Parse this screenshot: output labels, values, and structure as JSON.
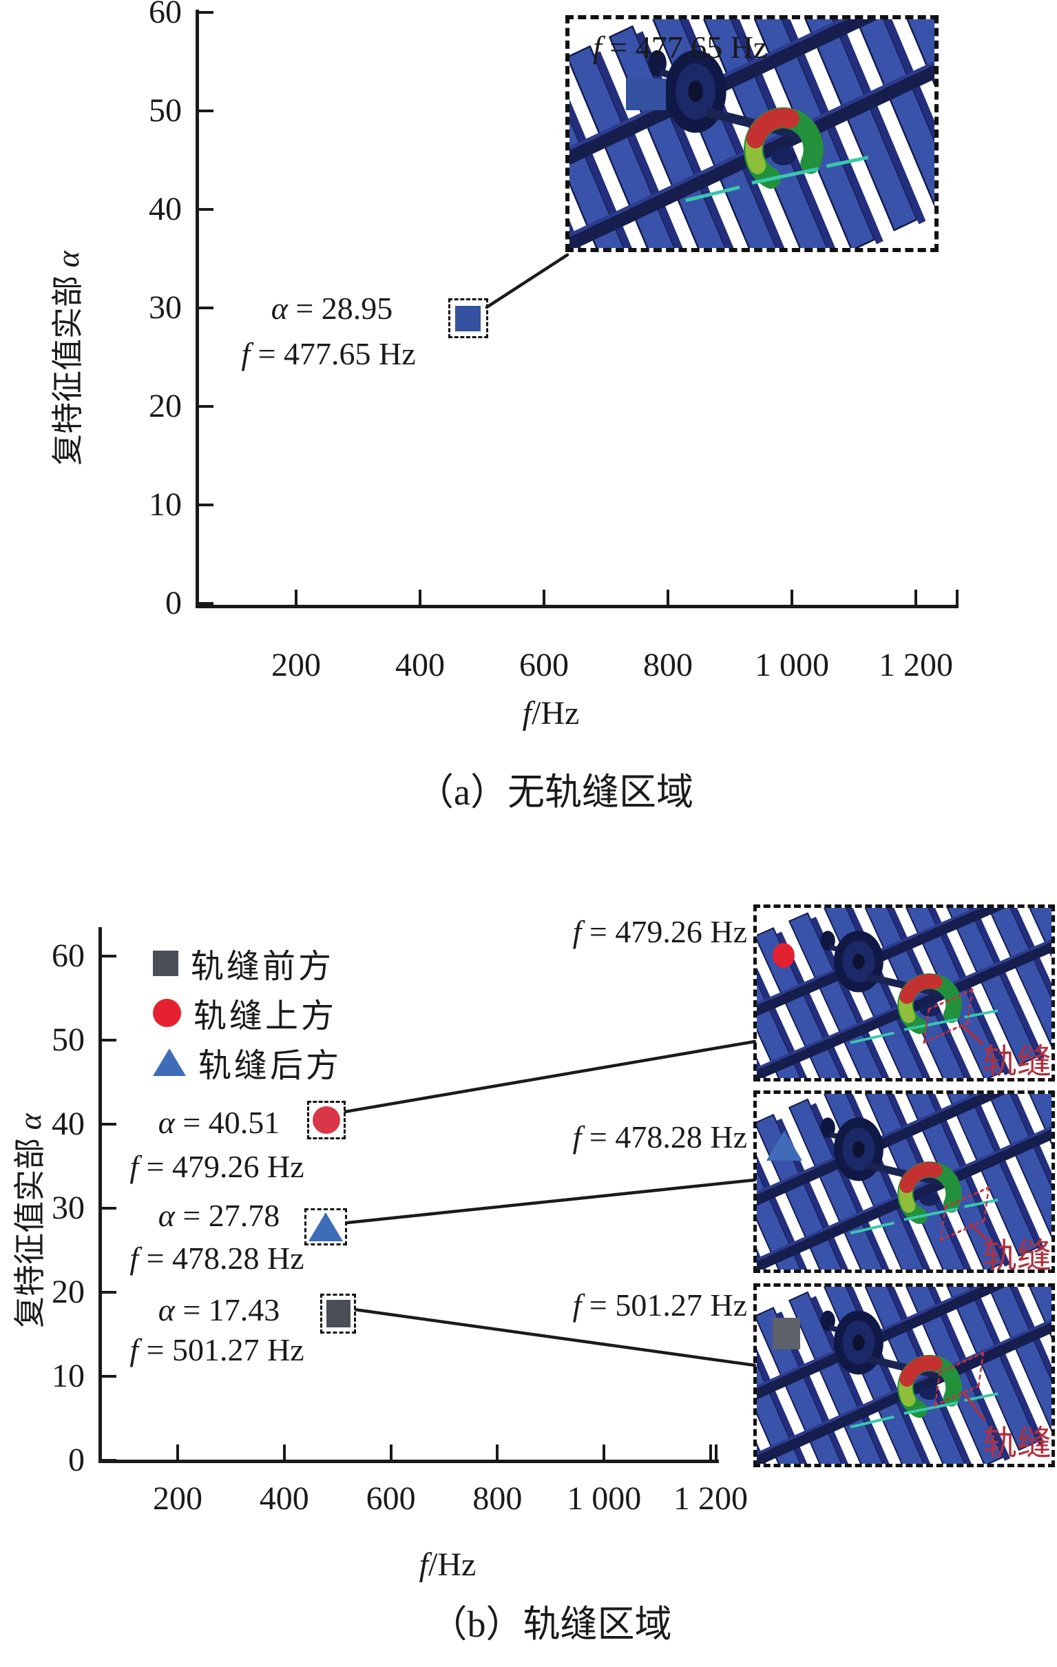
{
  "colors": {
    "axis": "#1a1a1a",
    "text": "#1a1a1a",
    "marker_blue_square": "#33519f",
    "marker_red_circle": "#d83747",
    "marker_blue_triangle": "#3e6cb8",
    "marker_gray_square": "#4a4e57",
    "legend_red": "#e6212f",
    "inset_red": "#e32030",
    "inset_gray": "#5d6169",
    "inset_tag_red": "#b2303d",
    "sleeper_blue": "#3952aa",
    "rail_navy": "#161e4e",
    "mode_green": "#23913c",
    "mode_red": "#c43131"
  },
  "panel_a": {
    "caption": "（a）无轨缝区域",
    "xlabel": {
      "sym": "f",
      "rest": "/Hz"
    },
    "ylabel": {
      "text": "复特征值实部 ",
      "sym": "α"
    },
    "xtick_labels": [
      "200",
      "400",
      "600",
      "800",
      "1 000",
      "1 200"
    ],
    "ytick_labels": [
      "0",
      "10",
      "20",
      "30",
      "40",
      "50",
      "60"
    ],
    "annotation": {
      "alpha_sym": "α",
      "alpha_rest": " = 28.95",
      "freq_sym": "f",
      "freq_rest": " = 477.65 Hz"
    },
    "inset": {
      "label_sym": "f",
      "label_rest": " = 477.65 Hz"
    }
  },
  "panel_b": {
    "caption": "（b）轨缝区域",
    "xlabel": {
      "sym": "f",
      "rest": "/Hz"
    },
    "ylabel": {
      "text": "复特征值实部 ",
      "sym": "α"
    },
    "xtick_labels": [
      "200",
      "400",
      "600",
      "800",
      "1 000",
      "1 200"
    ],
    "ytick_labels": [
      "0",
      "10",
      "20",
      "30",
      "40",
      "50",
      "60"
    ],
    "legend": [
      {
        "label": "轨缝前方",
        "marker": "square",
        "color": "#4a4e57"
      },
      {
        "label": "轨缝上方",
        "marker": "circle",
        "color": "#e6212f"
      },
      {
        "label": "轨缝后方",
        "marker": "triangle",
        "color": "#3e6cb8"
      }
    ],
    "annotations": [
      {
        "alpha_sym": "α",
        "alpha_rest": " = 40.51",
        "freq_sym": "f",
        "freq_rest": " = 479.26 Hz"
      },
      {
        "alpha_sym": "α",
        "alpha_rest": " = 27.78",
        "freq_sym": "f",
        "freq_rest": " = 478.28 Hz"
      },
      {
        "alpha_sym": "α",
        "alpha_rest": " = 17.43",
        "freq_sym": "f",
        "freq_rest": " = 501.27 Hz"
      }
    ],
    "insets": [
      {
        "label_sym": "f",
        "label_rest": " = 479.26 Hz",
        "tag": "轨缝"
      },
      {
        "label_sym": "f",
        "label_rest": " = 478.28 Hz",
        "tag": "轨缝"
      },
      {
        "label_sym": "f",
        "label_rest": " = 501.27 Hz",
        "tag": "轨缝"
      }
    ]
  },
  "chart_data": [
    {
      "type": "scatter",
      "title": "（a）无轨缝区域",
      "xlabel": "f/Hz",
      "ylabel": "复特征值实部 α",
      "xlim": [
        40,
        1290
      ],
      "ylim": [
        0,
        60
      ],
      "xticks": [
        200,
        400,
        600,
        800,
        1000,
        1200
      ],
      "yticks": [
        0,
        10,
        20,
        30,
        40,
        50,
        60
      ],
      "grid": false,
      "legend_position": "none",
      "series": [
        {
          "name": "无轨缝区域",
          "marker": "square",
          "color": "#33519f",
          "points": [
            {
              "f": 477.65,
              "alpha": 28.95
            }
          ]
        }
      ],
      "annotations": [
        "α = 28.95",
        "f = 477.65 Hz"
      ],
      "inset_labels": [
        "f = 477.65 Hz"
      ]
    },
    {
      "type": "scatter",
      "title": "（b）轨缝区域",
      "xlabel": "f/Hz",
      "ylabel": "复特征值实部 α",
      "xlim": [
        55,
        1210
      ],
      "ylim": [
        0,
        60
      ],
      "xticks": [
        200,
        400,
        600,
        800,
        1000,
        1200
      ],
      "yticks": [
        0,
        10,
        20,
        30,
        40,
        50,
        60
      ],
      "grid": false,
      "legend_position": "upper-left",
      "series": [
        {
          "name": "轨缝前方",
          "marker": "square",
          "color": "#4a4e57",
          "points": [
            {
              "f": 501.27,
              "alpha": 17.43
            }
          ]
        },
        {
          "name": "轨缝上方",
          "marker": "circle",
          "color": "#e6212f",
          "points": [
            {
              "f": 479.26,
              "alpha": 40.51
            }
          ]
        },
        {
          "name": "轨缝后方",
          "marker": "triangle",
          "color": "#3e6cb8",
          "points": [
            {
              "f": 478.28,
              "alpha": 27.78
            }
          ]
        }
      ],
      "annotations": [
        "α = 40.51",
        "f = 479.26 Hz",
        "α = 27.78",
        "f = 478.28 Hz",
        "α = 17.43",
        "f = 501.27 Hz"
      ],
      "inset_labels": [
        "f = 479.26 Hz",
        "f = 478.28 Hz",
        "f = 501.27 Hz"
      ],
      "inset_tag": "轨缝"
    }
  ]
}
